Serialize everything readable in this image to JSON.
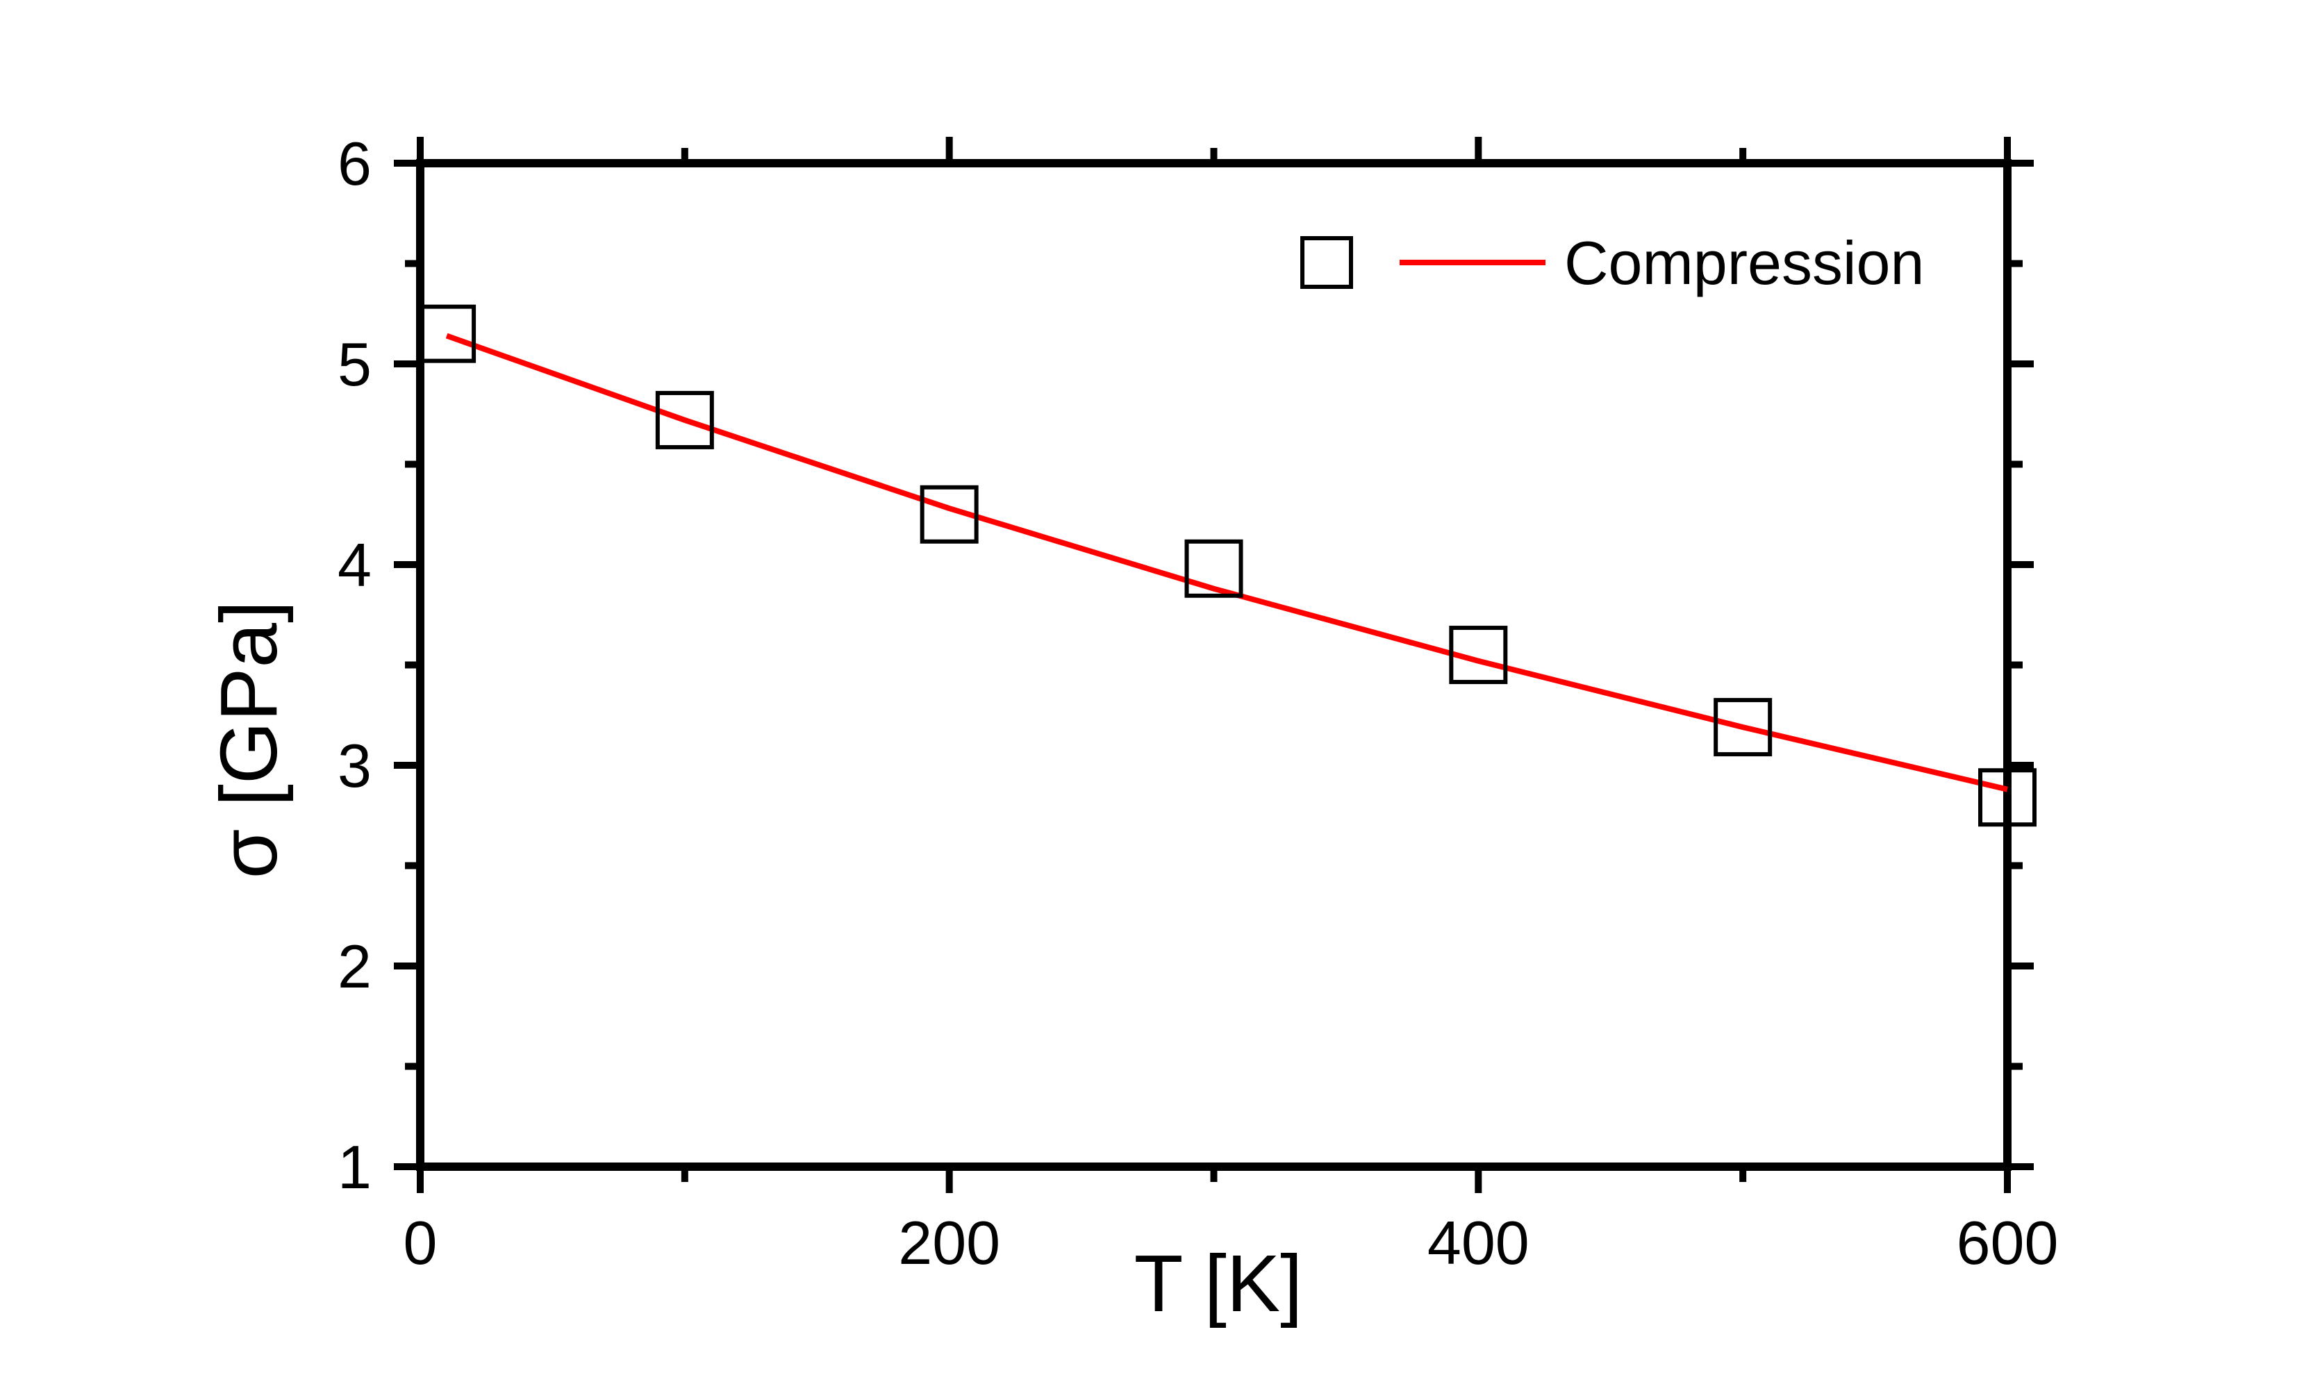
{
  "chart_data": {
    "type": "scatter",
    "xlabel": "T [K]",
    "ylabel": "σ [GPa]",
    "xlim": [
      0,
      600
    ],
    "ylim": [
      1,
      6
    ],
    "x_ticks": [
      0,
      200,
      400,
      600
    ],
    "x_tick_labels": [
      "0",
      "200",
      "400",
      "600"
    ],
    "x_minor_ticks": [
      100,
      300,
      500
    ],
    "y_ticks": [
      1,
      2,
      3,
      4,
      5,
      6
    ],
    "y_tick_labels": [
      "1",
      "2",
      "3",
      "4",
      "5",
      "6"
    ],
    "y_minor_ticks": [
      1.5,
      2.5,
      3.5,
      4.5,
      5.5
    ],
    "grid": false,
    "legend": {
      "position": "top-right",
      "entries": [
        {
          "label": "Compression",
          "marker": "open-square",
          "line_color": "#ff0000"
        }
      ]
    },
    "series": [
      {
        "label": "Compression",
        "marker": "open-square",
        "marker_color": "#000000",
        "x": [
          10,
          100,
          200,
          300,
          400,
          500,
          600
        ],
        "y": [
          5.15,
          4.72,
          4.25,
          3.98,
          3.55,
          3.19,
          2.84
        ]
      },
      {
        "kind": "fit-line",
        "color": "#ff0000",
        "x": [
          10,
          100,
          200,
          300,
          400,
          500,
          600
        ],
        "y": [
          5.14,
          4.72,
          4.28,
          3.88,
          3.52,
          3.19,
          2.88
        ]
      }
    ]
  }
}
